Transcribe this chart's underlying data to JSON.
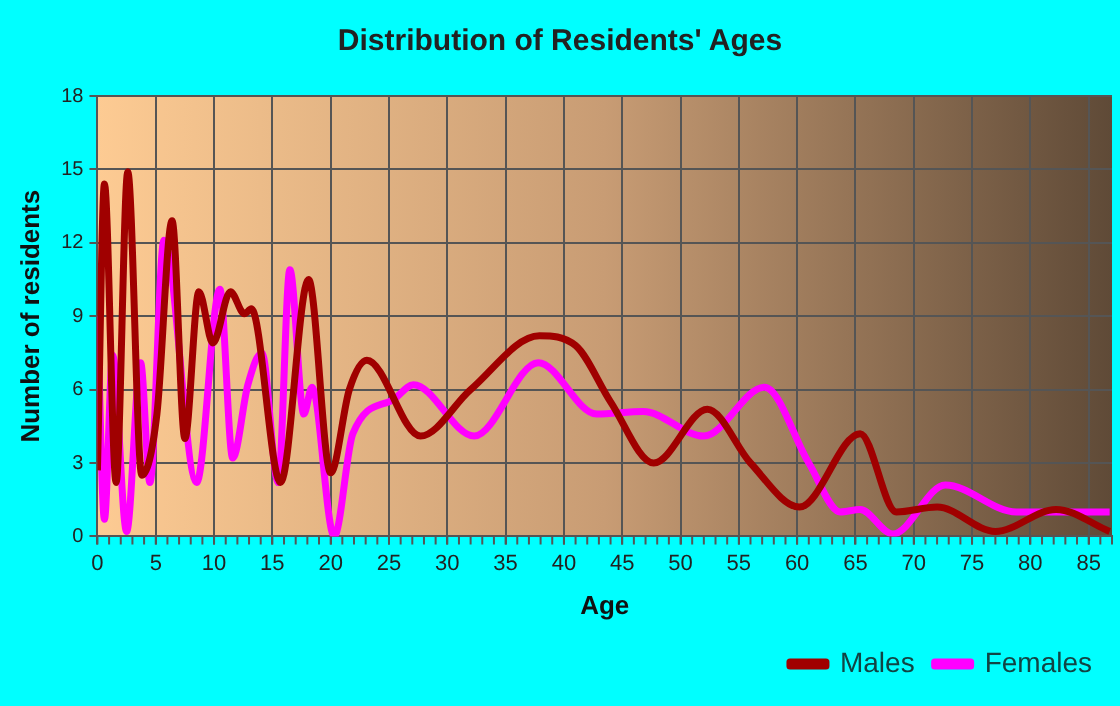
{
  "chart_data": {
    "type": "line",
    "title": "Distribution of Residents' Ages",
    "xlabel": "Age",
    "ylabel": "Number of residents",
    "xlim": [
      0,
      87
    ],
    "xticks": [
      0,
      5,
      10,
      15,
      20,
      25,
      30,
      35,
      40,
      45,
      50,
      55,
      60,
      65,
      70,
      75,
      80,
      85
    ],
    "ylim": [
      0,
      18
    ],
    "yticks": [
      0,
      3,
      6,
      9,
      12,
      15,
      18
    ],
    "grid": true,
    "legend": "bottom right",
    "marker": "none",
    "line_style": "solid",
    "series": [
      {
        "name": "Males",
        "color": "#a00000",
        "x": [
          0,
          0.6,
          1.6,
          2.6,
          3.8,
          5.1,
          6.4,
          7.5,
          8.7,
          9.9,
          11.4,
          12.6,
          13.2,
          15.7,
          18.1,
          20,
          21.6,
          23.1,
          27.7,
          32,
          37.9,
          41,
          44,
          47.7,
          52.3,
          56,
          60.2,
          65.4,
          68.5,
          72,
          77,
          82.2,
          86.8
        ],
        "values": [
          2.7,
          14.4,
          2.2,
          14.9,
          2.5,
          5,
          12.9,
          4,
          10,
          7.9,
          10,
          9.1,
          9.3,
          2.2,
          10.5,
          2.6,
          6,
          7.2,
          4.1,
          6,
          8.2,
          7.8,
          5.5,
          3,
          5.2,
          3,
          1.2,
          4.2,
          1,
          1.2,
          0.2,
          1.1,
          0.2
        ]
      },
      {
        "name": "Females",
        "color": "#ff00ff",
        "x": [
          0,
          0.6,
          1.3,
          2.5,
          3.7,
          4.5,
          5.7,
          8.5,
          10.5,
          11.6,
          12.9,
          14.1,
          15.5,
          16.5,
          17.7,
          18.4,
          20.3,
          21.9,
          25.4,
          27.1,
          32.3,
          37.8,
          42.8,
          46.8,
          52,
          57.2,
          61,
          63.7,
          65.4,
          68.2,
          72.7,
          78.8,
          86.8
        ],
        "values": [
          9,
          0.7,
          7.4,
          0.2,
          7.1,
          2.2,
          12.1,
          2.2,
          10.1,
          3.2,
          6.2,
          7.5,
          2.2,
          10.9,
          5,
          6.1,
          0,
          4.2,
          5.6,
          6.2,
          4.1,
          7.1,
          5,
          5.1,
          4.1,
          6.1,
          3,
          1,
          1.1,
          0.1,
          2.1,
          1,
          1
        ]
      }
    ]
  }
}
